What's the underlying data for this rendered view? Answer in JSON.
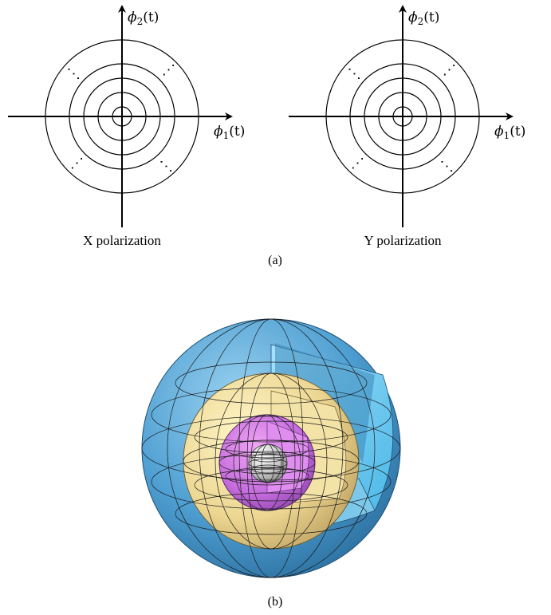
{
  "panel_a": {
    "left": {
      "x_axis_label": {
        "base": "ϕ",
        "sub": "1",
        "arg": "(t)"
      },
      "y_axis_label": {
        "base": "ϕ",
        "sub": "2",
        "arg": "(t)"
      },
      "caption": "X polarization",
      "rings": 5,
      "dots": "⋰"
    },
    "right": {
      "x_axis_label": {
        "base": "ϕ",
        "sub": "1",
        "arg": "(t)"
      },
      "y_axis_label": {
        "base": "ϕ",
        "sub": "2",
        "arg": "(t)"
      },
      "caption": "Y polarization",
      "rings": 5,
      "dots": "⋰"
    },
    "label": "(a)"
  },
  "panel_b": {
    "label": "(b)",
    "shells": [
      {
        "name": "outer",
        "color": "#4a9ccf"
      },
      {
        "name": "third",
        "color": "#e8d48a"
      },
      {
        "name": "second",
        "color": "#c060d8"
      },
      {
        "name": "core",
        "color": "#bfbfbf"
      }
    ]
  }
}
